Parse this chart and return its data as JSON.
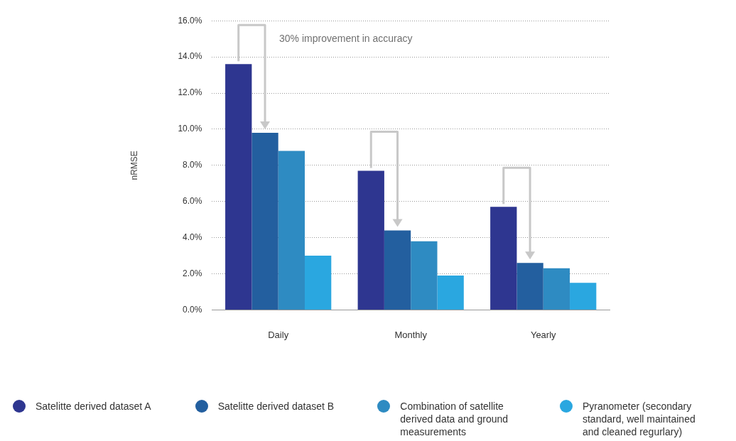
{
  "chart_data": {
    "type": "bar",
    "ylabel": "nRMSE",
    "categories": [
      "Daily",
      "Monthly",
      "Yearly"
    ],
    "series": [
      {
        "name": "Satelitte derived dataset A",
        "color": "#2e3690",
        "values": [
          13.6,
          7.7,
          5.7
        ]
      },
      {
        "name": "Satelitte derived dataset B",
        "color": "#235f9f",
        "values": [
          9.8,
          4.4,
          2.6
        ]
      },
      {
        "name": "Combination of satellite derived data and ground measurements",
        "color": "#2e8bc2",
        "values": [
          8.8,
          3.8,
          2.3
        ]
      },
      {
        "name": "Pyranometer (secondary standard, well maintained and cleaned regurlary)",
        "color": "#2aa7e0",
        "values": [
          3.0,
          1.9,
          1.5
        ]
      }
    ],
    "ylim": [
      0,
      16
    ],
    "yticks": [
      {
        "value": 0,
        "label": "0.0%"
      },
      {
        "value": 2,
        "label": "2.0%"
      },
      {
        "value": 4,
        "label": "4.0%"
      },
      {
        "value": 6,
        "label": "6.0%"
      },
      {
        "value": 8,
        "label": "8.0%"
      },
      {
        "value": 10,
        "label": "10.0%"
      },
      {
        "value": 12,
        "label": "12.0%"
      },
      {
        "value": 14,
        "label": "14.0%"
      },
      {
        "value": 16,
        "label": "16.0%"
      }
    ],
    "grid": "y",
    "legend": "bottom",
    "annotations": [
      "30% improvement in accuracy"
    ]
  }
}
